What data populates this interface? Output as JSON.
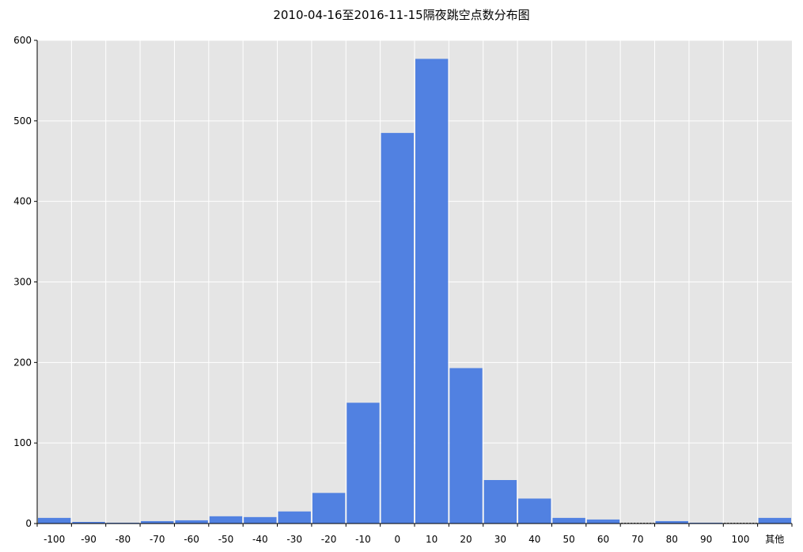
{
  "chart_data": {
    "type": "bar",
    "title": "2010-04-16至2016-11-15隔夜跳空点数分布图",
    "xlabel": "",
    "ylabel": "",
    "categories": [
      "-100",
      "-90",
      "-80",
      "-70",
      "-60",
      "-50",
      "-40",
      "-30",
      "-20",
      "-10",
      "0",
      "10",
      "20",
      "30",
      "40",
      "50",
      "60",
      "70",
      "80",
      "90",
      "100",
      "其他"
    ],
    "values": [
      7,
      2,
      1,
      3,
      4,
      9,
      8,
      15,
      38,
      150,
      485,
      577,
      193,
      54,
      31,
      7,
      5,
      0,
      3,
      1,
      0,
      7
    ],
    "ylim": [
      0,
      600
    ],
    "yticks": [
      "0",
      "100",
      "200",
      "300",
      "400",
      "500",
      "600"
    ],
    "grid": true,
    "legend": "none",
    "colors": {
      "bar": "#5181e1",
      "plot_bg": "#e5e5e5",
      "grid": "#ffffff"
    }
  }
}
